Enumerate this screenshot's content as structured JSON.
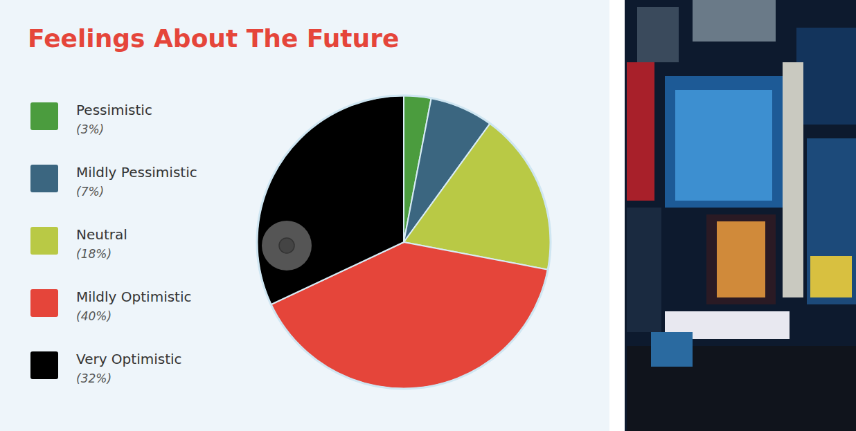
{
  "chart_data": {
    "type": "pie",
    "title": "Feelings About The Future",
    "categories": [
      "Pessimistic",
      "Mildly Pessimistic",
      "Neutral",
      "Mildly Optimistic",
      "Very Optimistic"
    ],
    "values": [
      3,
      7,
      18,
      40,
      32
    ],
    "value_labels": [
      "(3%)",
      "(7%)",
      "(18%)",
      "(40%)",
      "(32%)"
    ],
    "colors": [
      "#4b9c3e",
      "#3b6680",
      "#b9c945",
      "#e5453a",
      "#000000"
    ],
    "legend": "left"
  }
}
